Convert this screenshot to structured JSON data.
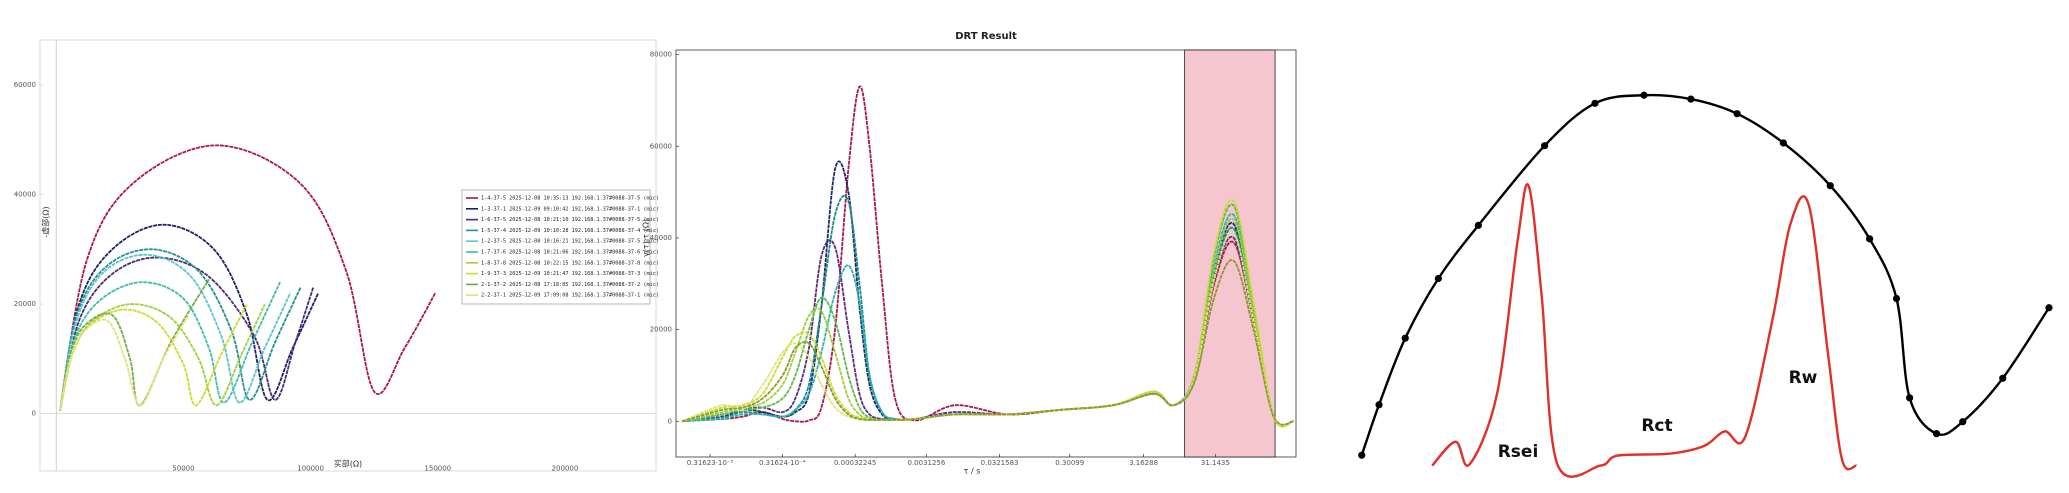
{
  "chart_data": [
    {
      "type": "line",
      "xlabel": "实部(Ω)",
      "ylabel": "-虚部(Ω)",
      "xlim": [
        -6400,
        235800
      ],
      "ylim": [
        -10500,
        68250
      ],
      "xticks": [
        50000,
        100000,
        150000,
        200000
      ],
      "yticks": [
        0,
        20000,
        40000,
        60000
      ],
      "grid": false,
      "frame": true,
      "legend": "right",
      "series": [
        {
          "name": "1-4-37-5 2025-12-08 10:35:13 192.168.1.37#0088-37-5 (mic)",
          "color": "#a8174a",
          "x": [
            1500,
            12000,
            30000,
            63000,
            96000,
            114000,
            125000,
            137000,
            149000
          ],
          "values": [
            500,
            28000,
            42000,
            49000,
            42000,
            26000,
            4000,
            12000,
            22000
          ]
        },
        {
          "name": "1-3-37-1 2025-12-09 09:10:42 192.168.1.37#0088-37-1 (mic)",
          "color": "#1c2260",
          "x": [
            1500,
            9000,
            22000,
            42000,
            62000,
            75000,
            83000,
            93000,
            103000
          ],
          "values": [
            500,
            20000,
            30000,
            34500,
            30000,
            18000,
            2500,
            12000,
            22000
          ]
        },
        {
          "name": "1-6-37-5 2025-12-08 10:21:10 192.168.1.37#0088-37-5 (mic)",
          "color": "#4a2a7c",
          "x": [
            1500,
            9000,
            22000,
            40000,
            60000,
            78000,
            86000,
            94000,
            101000
          ],
          "values": [
            500,
            17000,
            25500,
            28500,
            25000,
            14000,
            2500,
            13000,
            23000
          ]
        },
        {
          "name": "1-5-37-4 2025-12-09 10:10:28 192.168.1.37#0088-37-4 (mic)",
          "color": "#23918e",
          "x": [
            1500,
            8000,
            20000,
            38000,
            56000,
            69000,
            76000,
            86000,
            96000
          ],
          "values": [
            500,
            18000,
            27000,
            30000,
            26000,
            15000,
            2500,
            13000,
            23000
          ]
        },
        {
          "name": "1-2-37-5 2025-12-08 10:16:21 192.168.1.37#0088-37-5 (mic)",
          "color": "#5cc4d0",
          "x": [
            1500,
            8000,
            19000,
            36000,
            53000,
            65000,
            72000,
            82000,
            92000
          ],
          "values": [
            500,
            17000,
            26000,
            29000,
            25000,
            14000,
            2000,
            12000,
            22000
          ]
        },
        {
          "name": "1-7-37-6 2025-12-08 10:21:06 192.168.1.37#0088-37-6 (mic)",
          "color": "#3bbfa5",
          "x": [
            1500,
            7500,
            18000,
            34000,
            50000,
            60000,
            66000,
            77000,
            88000
          ],
          "values": [
            500,
            14000,
            21000,
            24000,
            21000,
            12000,
            2000,
            13000,
            24000
          ]
        },
        {
          "name": "1-8-37-8 2025-12-08 10:22:15 192.168.1.37#0088-37-8 (mic)",
          "color": "#9fd03c",
          "x": [
            1500,
            7000,
            16000,
            30000,
            45000,
            56000,
            63000,
            73000,
            82000
          ],
          "values": [
            500,
            12000,
            17500,
            20000,
            17500,
            10000,
            1500,
            11000,
            20000
          ]
        },
        {
          "name": "1-9-37-3 2025-12-09 10:21:47 192.168.1.37#0088-37-3 (mic)",
          "color": "#c8dc2a",
          "x": [
            1500,
            6500,
            14000,
            27000,
            40000,
            50000,
            55000,
            65000,
            75000
          ],
          "values": [
            500,
            11000,
            16500,
            19000,
            16500,
            9000,
            1500,
            11000,
            20000
          ]
        },
        {
          "name": "2-1-37-2 2025-12-08 17:18:05 192.168.1.37#0088-37-2 (mic)",
          "color": "#6fae46",
          "x": [
            1500,
            5000,
            11000,
            22000,
            29000,
            33000,
            45000,
            60000
          ],
          "values": [
            500,
            10000,
            16000,
            18000,
            10000,
            1500,
            13000,
            24500
          ]
        },
        {
          "name": "2-2-37-1 2025-12-09 17:09:08 192.168.1.37#0088-37-1 (mic)",
          "color": "#dfe47a",
          "x": [
            1500,
            5000,
            10000,
            20000,
            27000,
            33000,
            42000,
            52000
          ],
          "values": [
            500,
            9000,
            14500,
            17000,
            10000,
            1500,
            10000,
            18000
          ]
        }
      ]
    },
    {
      "type": "line",
      "title": "DRT Result",
      "xlabel": "τ / s",
      "ylabel": "γ(τ)·τ (Ω)",
      "xscale": "log",
      "xlim": [
        1.07e-06,
        407
      ],
      "ylim": [
        -7800,
        81000
      ],
      "xticks": [
        {
          "value": 3.1623e-06,
          "label": "0.31623·10⁻⁵"
        },
        {
          "value": 3.1624e-05,
          "label": "0.31624·10⁻⁴"
        },
        0.00032245,
        0.0031256,
        0.0321583,
        0.30099,
        3.16288,
        31.1435
      ],
      "yticks": [
        0,
        20000,
        40000,
        60000,
        80000
      ],
      "grid": false,
      "frame": true,
      "highlight": {
        "x": [
          11.7,
          209
        ],
        "color": "#f5c6d0"
      },
      "x": [
        1.3e-06,
        4.7e-06,
        8.9e-06,
        1.7e-05,
        3.2e-05,
        4.8e-05,
        7.4e-05,
        0.00011,
        0.00017,
        0.00026,
        0.00037,
        0.00051,
        0.00076,
        0.00115,
        0.0022,
        0.0078,
        0.042,
        0.23,
        1.2,
        4.4,
        8.3,
        16,
        30,
        56,
        105,
        200,
        380
      ],
      "series": [
        {
          "color": "#a8174a",
          "values": [
            0,
            500,
            1000,
            2000,
            500,
            0,
            200,
            3000,
            20000,
            55000,
            73000,
            60000,
            30000,
            5000,
            200,
            3500,
            1500,
            2500,
            3500,
            6000,
            3500,
            9000,
            30000,
            39000,
            22000,
            1000,
            0
          ]
        },
        {
          "color": "#1c2a6b",
          "values": [
            0,
            1000,
            2500,
            2000,
            1000,
            2000,
            6000,
            25000,
            55000,
            50000,
            25000,
            8000,
            1500,
            500,
            500,
            1500,
            1500,
            2500,
            3500,
            6000,
            3500,
            9500,
            33000,
            43000,
            23000,
            1000,
            0
          ]
        },
        {
          "color": "#1b8a8a",
          "values": [
            0,
            800,
            2000,
            1500,
            1000,
            2500,
            8000,
            25000,
            45000,
            48000,
            30000,
            10000,
            2000,
            500,
            500,
            1500,
            1500,
            2500,
            3500,
            6000,
            3500,
            9500,
            32000,
            42000,
            23000,
            1000,
            0
          ]
        },
        {
          "color": "#5a2d82",
          "values": [
            0,
            1500,
            2500,
            3000,
            2000,
            5000,
            16000,
            36000,
            38000,
            20000,
            6000,
            1500,
            500,
            300,
            500,
            2000,
            1500,
            2500,
            3500,
            6000,
            3500,
            9000,
            31000,
            40000,
            22000,
            1000,
            0
          ]
        },
        {
          "color": "#29b5b0",
          "values": [
            0,
            600,
            1500,
            1500,
            1000,
            2500,
            6000,
            15000,
            28000,
            34000,
            26000,
            10000,
            2000,
            500,
            500,
            1500,
            1500,
            2500,
            3500,
            6000,
            3500,
            10000,
            34000,
            45000,
            24000,
            1000,
            0
          ]
        },
        {
          "color": "#5fb84a",
          "values": [
            0,
            1500,
            2500,
            3000,
            5000,
            10000,
            20000,
            27000,
            22000,
            10000,
            3000,
            800,
            300,
            300,
            500,
            1500,
            1500,
            2500,
            3500,
            6500,
            3500,
            10000,
            36000,
            47000,
            25000,
            1000,
            0
          ]
        },
        {
          "color": "#9fd03c",
          "values": [
            0,
            2000,
            3000,
            4000,
            8000,
            15000,
            23000,
            24000,
            15000,
            5000,
            1500,
            500,
            300,
            300,
            500,
            1500,
            1500,
            2500,
            3500,
            6000,
            3500,
            9000,
            33000,
            44000,
            24000,
            1000,
            0
          ]
        },
        {
          "color": "#c8dc2a",
          "values": [
            0,
            3000,
            3500,
            6000,
            14000,
            18500,
            19000,
            14000,
            6000,
            2000,
            800,
            300,
            300,
            300,
            500,
            1500,
            1500,
            2500,
            3500,
            6500,
            3500,
            10000,
            37000,
            48000,
            26000,
            1000,
            0
          ]
        },
        {
          "color": "#dfe47a",
          "values": [
            0,
            3500,
            2500,
            8000,
            15000,
            17000,
            14000,
            8000,
            3000,
            1000,
            500,
            300,
            300,
            300,
            500,
            1500,
            1500,
            2500,
            3500,
            6000,
            3500,
            9000,
            31000,
            41000,
            22000,
            1000,
            0
          ]
        },
        {
          "color": "#8a9a2a",
          "values": [
            0,
            2500,
            3000,
            5000,
            10000,
            16000,
            17000,
            12000,
            5000,
            1500,
            500,
            300,
            300,
            300,
            500,
            1500,
            1500,
            2500,
            3500,
            6000,
            3500,
            8500,
            27000,
            35000,
            20000,
            1000,
            0
          ]
        }
      ]
    },
    {
      "type": "line",
      "xlim": [
        0,
        100
      ],
      "ylim": [
        0,
        100
      ],
      "frame": false,
      "annotations": [
        "Rsei",
        "Rct",
        "Rw"
      ],
      "series": [
        {
          "color": "#000000",
          "markers": true,
          "x": [
            0.4,
            2.9,
            6.7,
            11.5,
            17.3,
            26.9,
            34.2,
            41.3,
            48.1,
            54.8,
            61.5,
            68.3,
            74,
            77.9,
            79.8,
            83.7,
            87.5,
            93.3,
            100
          ],
          "values": [
            4.1,
            17.2,
            34.5,
            50,
            63.8,
            84.5,
            95.5,
            97.6,
            96.6,
            92.8,
            85.2,
            74.1,
            60.3,
            44.8,
            19,
            9.7,
            12.8,
            24.1,
            42.4
          ]
        },
        {
          "color": "#e0302a",
          "x": [
            10.6,
            14,
            16,
            20,
            23,
            24.6,
            26.5,
            28.7,
            35,
            37.5,
            45,
            50,
            53,
            56,
            60,
            62.5,
            65.2,
            68,
            70,
            72.1
          ],
          "values": [
            1.4,
            7.6,
            1.7,
            20,
            60,
            74,
            45,
            2,
            1.4,
            4,
            4.5,
            6.5,
            10.3,
            9,
            40,
            64,
            69,
            30,
            3,
            1.4
          ]
        }
      ]
    }
  ]
}
